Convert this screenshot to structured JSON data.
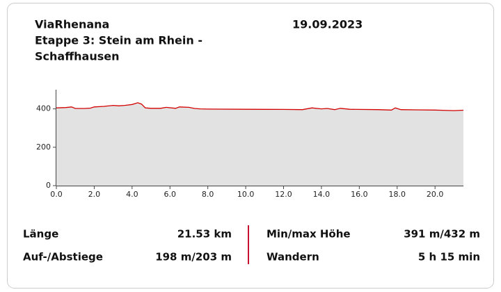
{
  "header": {
    "title_lines": [
      "ViaRhenana",
      "Etappe 3: Stein am Rhein -",
      "Schaffhausen"
    ],
    "date": "19.09.2023"
  },
  "chart_data": {
    "type": "area",
    "x": [
      0,
      0.5,
      0.8,
      1.0,
      1.5,
      1.8,
      2.0,
      2.5,
      3.0,
      3.3,
      3.6,
      4.0,
      4.3,
      4.5,
      4.7,
      5.0,
      5.5,
      5.8,
      6.3,
      6.5,
      7.0,
      7.3,
      7.6,
      8.0,
      10.0,
      12.0,
      13.0,
      13.5,
      14.0,
      14.3,
      14.7,
      15.0,
      15.5,
      16.0,
      17.0,
      17.7,
      17.9,
      18.2,
      19.0,
      20.0,
      21.0,
      21.5
    ],
    "values": [
      405,
      407,
      410,
      402,
      402,
      404,
      410,
      413,
      418,
      416,
      418,
      423,
      432,
      425,
      405,
      403,
      403,
      408,
      403,
      410,
      408,
      402,
      400,
      399,
      398,
      397,
      396,
      405,
      400,
      402,
      396,
      403,
      398,
      397,
      396,
      394,
      405,
      396,
      395,
      394,
      391,
      393
    ],
    "color": "#d40000",
    "fill": "#e2e2e2",
    "xlim": [
      0,
      21.5
    ],
    "ylim": [
      0,
      500
    ],
    "xticks": [
      {
        "value": 0,
        "label": "0.0"
      },
      {
        "value": 2,
        "label": "2.0"
      },
      {
        "value": 4,
        "label": "4.0"
      },
      {
        "value": 6,
        "label": "6.0"
      },
      {
        "value": 8,
        "label": "8.0"
      },
      {
        "value": 10,
        "label": "10.0"
      },
      {
        "value": 12,
        "label": "12.0"
      },
      {
        "value": 14,
        "label": "14.0"
      },
      {
        "value": 16,
        "label": "16.0"
      },
      {
        "value": 18,
        "label": "18.0"
      },
      {
        "value": 20,
        "label": "20.0"
      }
    ],
    "yticks": [
      0,
      200,
      400
    ]
  },
  "stats": [
    {
      "label": "Länge",
      "value": "21.53 km"
    },
    {
      "label": "Min/max Höhe",
      "value": "391 m/432 m"
    },
    {
      "label": "Auf-/Abstiege",
      "value": "198 m/203 m"
    },
    {
      "label": "Wandern",
      "value": "5 h 15 min"
    }
  ]
}
